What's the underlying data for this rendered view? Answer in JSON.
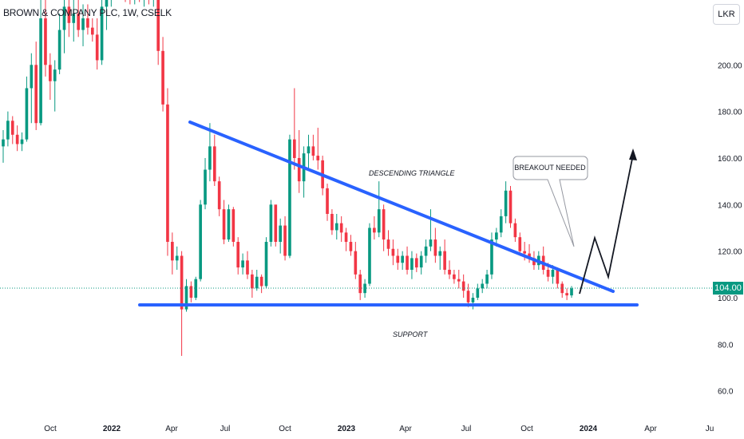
{
  "header": {
    "title": "BROWN & COMPANY PLC, 1W, CSELK",
    "currency": "LKR"
  },
  "last_price_tag": "104.00",
  "colors": {
    "up": "#089981",
    "down": "#f23645",
    "trendline": "#2962ff",
    "price_line": "#089981"
  },
  "chart_data": {
    "type": "candlestick",
    "title": "BROWN & COMPANY PLC, 1W, CSELK",
    "y_axis": {
      "ticks": [
        "60.0",
        "80.0",
        "100.0",
        "120.00",
        "140.00",
        "160.00",
        "180.00",
        "200.00"
      ],
      "ylim": [
        50,
        232
      ],
      "unit": "LKR"
    },
    "x_axis": {
      "ticks": [
        "Oct",
        "2022",
        "Apr",
        "Jul",
        "Oct",
        "2023",
        "Apr",
        "Jul",
        "Oct",
        "2024",
        "Apr",
        "Ju"
      ]
    },
    "last_price": 104,
    "annotations": [
      {
        "kind": "trendline",
        "name": "resistance",
        "from": [
          "2022-06-01",
          175
        ],
        "to": [
          "2024-02-10",
          102
        ]
      },
      {
        "kind": "trendline",
        "name": "support",
        "from": [
          "2022-02-20",
          96
        ],
        "to": [
          "2024-04-10",
          96
        ]
      },
      {
        "kind": "text",
        "text": "DESCENDING TRIANGLE"
      },
      {
        "kind": "text",
        "text": "SUPPORT"
      },
      {
        "kind": "callout",
        "text": "BREAKOUT NEEDED"
      },
      {
        "kind": "projection",
        "points": [
          [
            "2023-12-25",
            102
          ],
          [
            "2024-01-28",
            126
          ],
          [
            "2024-02-20",
            108
          ],
          [
            "2024-03-30",
            166
          ]
        ]
      }
    ],
    "candles": [
      {
        "o": 165,
        "h": 172,
        "l": 158,
        "c": 168
      },
      {
        "o": 168,
        "h": 180,
        "l": 165,
        "c": 176
      },
      {
        "o": 176,
        "h": 178,
        "l": 166,
        "c": 170
      },
      {
        "o": 170,
        "h": 174,
        "l": 163,
        "c": 166
      },
      {
        "o": 166,
        "h": 171,
        "l": 163,
        "c": 168
      },
      {
        "o": 168,
        "h": 195,
        "l": 167,
        "c": 190
      },
      {
        "o": 190,
        "h": 205,
        "l": 175,
        "c": 200
      },
      {
        "o": 200,
        "h": 210,
        "l": 172,
        "c": 175
      },
      {
        "o": 175,
        "h": 230,
        "l": 174,
        "c": 220
      },
      {
        "o": 220,
        "h": 228,
        "l": 195,
        "c": 200
      },
      {
        "o": 200,
        "h": 205,
        "l": 185,
        "c": 193
      },
      {
        "o": 193,
        "h": 202,
        "l": 180,
        "c": 198
      },
      {
        "o": 198,
        "h": 222,
        "l": 196,
        "c": 215
      },
      {
        "o": 215,
        "h": 230,
        "l": 205,
        "c": 225
      },
      {
        "o": 225,
        "h": 230,
        "l": 212,
        "c": 218
      },
      {
        "o": 218,
        "h": 228,
        "l": 210,
        "c": 222
      },
      {
        "o": 222,
        "h": 230,
        "l": 212,
        "c": 215
      },
      {
        "o": 215,
        "h": 226,
        "l": 208,
        "c": 220
      },
      {
        "o": 220,
        "h": 226,
        "l": 213,
        "c": 216
      },
      {
        "o": 216,
        "h": 220,
        "l": 210,
        "c": 213
      },
      {
        "o": 213,
        "h": 220,
        "l": 198,
        "c": 202
      },
      {
        "o": 202,
        "h": 230,
        "l": 200,
        "c": 225
      },
      {
        "o": 225,
        "h": 232,
        "l": 215,
        "c": 228
      },
      {
        "o": 228,
        "h": 235,
        "l": 225,
        "c": 232
      },
      {
        "o": 232,
        "h": 236,
        "l": 228,
        "c": 233
      },
      {
        "o": 233,
        "h": 235,
        "l": 229,
        "c": 231
      },
      {
        "o": 231,
        "h": 234,
        "l": 227,
        "c": 230
      },
      {
        "o": 230,
        "h": 234,
        "l": 226,
        "c": 229
      },
      {
        "o": 229,
        "h": 233,
        "l": 226,
        "c": 231
      },
      {
        "o": 231,
        "h": 234,
        "l": 227,
        "c": 229
      },
      {
        "o": 229,
        "h": 233,
        "l": 225,
        "c": 230
      },
      {
        "o": 230,
        "h": 232,
        "l": 226,
        "c": 228
      },
      {
        "o": 228,
        "h": 232,
        "l": 225,
        "c": 230
      },
      {
        "o": 230,
        "h": 232,
        "l": 200,
        "c": 206
      },
      {
        "o": 206,
        "h": 212,
        "l": 180,
        "c": 183
      },
      {
        "o": 183,
        "h": 190,
        "l": 118,
        "c": 124
      },
      {
        "o": 124,
        "h": 128,
        "l": 110,
        "c": 116
      },
      {
        "o": 116,
        "h": 122,
        "l": 112,
        "c": 118
      },
      {
        "o": 118,
        "h": 120,
        "l": 75,
        "c": 95
      },
      {
        "o": 95,
        "h": 108,
        "l": 94,
        "c": 105
      },
      {
        "o": 105,
        "h": 107,
        "l": 98,
        "c": 100
      },
      {
        "o": 100,
        "h": 109,
        "l": 99,
        "c": 108
      },
      {
        "o": 108,
        "h": 142,
        "l": 107,
        "c": 140
      },
      {
        "o": 140,
        "h": 160,
        "l": 138,
        "c": 155
      },
      {
        "o": 155,
        "h": 175,
        "l": 150,
        "c": 165
      },
      {
        "o": 165,
        "h": 170,
        "l": 148,
        "c": 150
      },
      {
        "o": 150,
        "h": 152,
        "l": 135,
        "c": 138
      },
      {
        "o": 138,
        "h": 142,
        "l": 123,
        "c": 125
      },
      {
        "o": 125,
        "h": 140,
        "l": 124,
        "c": 138
      },
      {
        "o": 138,
        "h": 139,
        "l": 122,
        "c": 124
      },
      {
        "o": 124,
        "h": 126,
        "l": 110,
        "c": 113
      },
      {
        "o": 113,
        "h": 119,
        "l": 110,
        "c": 116
      },
      {
        "o": 116,
        "h": 120,
        "l": 108,
        "c": 110
      },
      {
        "o": 110,
        "h": 112,
        "l": 100,
        "c": 104
      },
      {
        "o": 104,
        "h": 112,
        "l": 103,
        "c": 109
      },
      {
        "o": 109,
        "h": 110,
        "l": 102,
        "c": 105
      },
      {
        "o": 105,
        "h": 126,
        "l": 104,
        "c": 124
      },
      {
        "o": 124,
        "h": 142,
        "l": 122,
        "c": 140
      },
      {
        "o": 140,
        "h": 139,
        "l": 122,
        "c": 124
      },
      {
        "o": 124,
        "h": 134,
        "l": 119,
        "c": 131
      },
      {
        "o": 131,
        "h": 135,
        "l": 116,
        "c": 118
      },
      {
        "o": 118,
        "h": 170,
        "l": 117,
        "c": 168
      },
      {
        "o": 168,
        "h": 190,
        "l": 155,
        "c": 160
      },
      {
        "o": 160,
        "h": 172,
        "l": 145,
        "c": 150
      },
      {
        "o": 150,
        "h": 165,
        "l": 143,
        "c": 162
      },
      {
        "o": 162,
        "h": 170,
        "l": 155,
        "c": 165
      },
      {
        "o": 165,
        "h": 170,
        "l": 159,
        "c": 161
      },
      {
        "o": 161,
        "h": 173,
        "l": 155,
        "c": 159
      },
      {
        "o": 159,
        "h": 161,
        "l": 144,
        "c": 147
      },
      {
        "o": 147,
        "h": 149,
        "l": 133,
        "c": 136
      },
      {
        "o": 136,
        "h": 138,
        "l": 127,
        "c": 129
      },
      {
        "o": 129,
        "h": 136,
        "l": 125,
        "c": 132
      },
      {
        "o": 132,
        "h": 135,
        "l": 124,
        "c": 128
      },
      {
        "o": 128,
        "h": 130,
        "l": 120,
        "c": 124
      },
      {
        "o": 124,
        "h": 127,
        "l": 118,
        "c": 120
      },
      {
        "o": 120,
        "h": 124,
        "l": 108,
        "c": 110
      },
      {
        "o": 110,
        "h": 112,
        "l": 99,
        "c": 102
      },
      {
        "o": 102,
        "h": 108,
        "l": 100,
        "c": 106
      },
      {
        "o": 106,
        "h": 132,
        "l": 105,
        "c": 130
      },
      {
        "o": 130,
        "h": 135,
        "l": 125,
        "c": 128
      },
      {
        "o": 128,
        "h": 150,
        "l": 126,
        "c": 138
      },
      {
        "o": 138,
        "h": 140,
        "l": 120,
        "c": 125
      },
      {
        "o": 125,
        "h": 129,
        "l": 118,
        "c": 121
      },
      {
        "o": 121,
        "h": 125,
        "l": 114,
        "c": 118
      },
      {
        "o": 118,
        "h": 121,
        "l": 112,
        "c": 115
      },
      {
        "o": 115,
        "h": 120,
        "l": 112,
        "c": 118
      },
      {
        "o": 118,
        "h": 122,
        "l": 110,
        "c": 112
      },
      {
        "o": 112,
        "h": 120,
        "l": 108,
        "c": 117
      },
      {
        "o": 117,
        "h": 119,
        "l": 111,
        "c": 113
      },
      {
        "o": 113,
        "h": 120,
        "l": 110,
        "c": 118
      },
      {
        "o": 118,
        "h": 125,
        "l": 115,
        "c": 122
      },
      {
        "o": 122,
        "h": 138,
        "l": 120,
        "c": 125
      },
      {
        "o": 125,
        "h": 130,
        "l": 115,
        "c": 118
      },
      {
        "o": 118,
        "h": 122,
        "l": 112,
        "c": 120
      },
      {
        "o": 120,
        "h": 125,
        "l": 110,
        "c": 112
      },
      {
        "o": 112,
        "h": 116,
        "l": 108,
        "c": 110
      },
      {
        "o": 110,
        "h": 112,
        "l": 106,
        "c": 108
      },
      {
        "o": 108,
        "h": 112,
        "l": 104,
        "c": 107
      },
      {
        "o": 107,
        "h": 110,
        "l": 100,
        "c": 103
      },
      {
        "o": 103,
        "h": 106,
        "l": 96,
        "c": 98
      },
      {
        "o": 98,
        "h": 102,
        "l": 95,
        "c": 100
      },
      {
        "o": 100,
        "h": 106,
        "l": 99,
        "c": 104
      },
      {
        "o": 104,
        "h": 108,
        "l": 102,
        "c": 106
      },
      {
        "o": 106,
        "h": 112,
        "l": 104,
        "c": 110
      },
      {
        "o": 110,
        "h": 128,
        "l": 108,
        "c": 125
      },
      {
        "o": 125,
        "h": 130,
        "l": 122,
        "c": 128
      },
      {
        "o": 128,
        "h": 138,
        "l": 126,
        "c": 135
      },
      {
        "o": 135,
        "h": 150,
        "l": 132,
        "c": 146
      },
      {
        "o": 146,
        "h": 148,
        "l": 130,
        "c": 132
      },
      {
        "o": 132,
        "h": 134,
        "l": 124,
        "c": 126
      },
      {
        "o": 126,
        "h": 128,
        "l": 118,
        "c": 120
      },
      {
        "o": 120,
        "h": 124,
        "l": 116,
        "c": 119
      },
      {
        "o": 119,
        "h": 123,
        "l": 115,
        "c": 117
      },
      {
        "o": 117,
        "h": 120,
        "l": 112,
        "c": 114
      },
      {
        "o": 114,
        "h": 120,
        "l": 112,
        "c": 118
      },
      {
        "o": 118,
        "h": 122,
        "l": 110,
        "c": 112
      },
      {
        "o": 112,
        "h": 115,
        "l": 107,
        "c": 109
      },
      {
        "o": 109,
        "h": 114,
        "l": 106,
        "c": 112
      },
      {
        "o": 112,
        "h": 113,
        "l": 104,
        "c": 106
      },
      {
        "o": 106,
        "h": 107,
        "l": 100,
        "c": 102
      },
      {
        "o": 102,
        "h": 104,
        "l": 99,
        "c": 101
      },
      {
        "o": 101,
        "h": 105,
        "l": 100,
        "c": 104
      }
    ]
  }
}
